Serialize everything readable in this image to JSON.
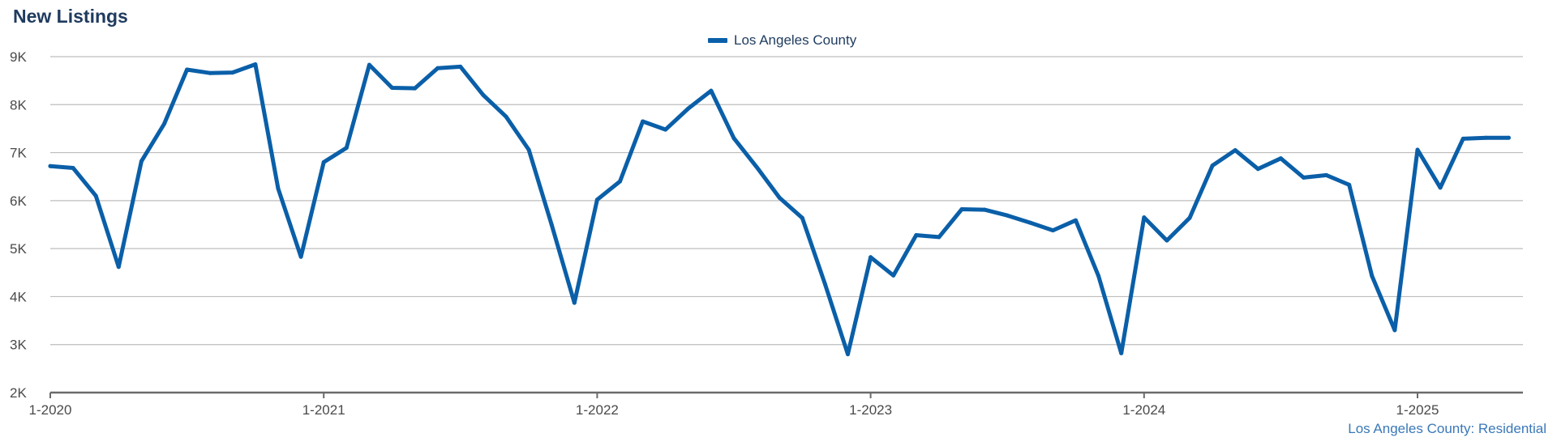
{
  "title": "New Listings",
  "footer": "Los Angeles County: Residential",
  "colors": {
    "line": "#0a5fa8",
    "grid": "#bdbdbd",
    "axis": "#6a6a6a",
    "title": "#1f3b5f"
  },
  "chart_data": {
    "type": "line",
    "title": "New Listings",
    "legend_position": "top-center",
    "grid": true,
    "ylim": [
      2000,
      9000
    ],
    "yticks": [
      2000,
      3000,
      4000,
      5000,
      6000,
      7000,
      8000,
      9000
    ],
    "ytick_labels": [
      "2K",
      "3K",
      "4K",
      "5K",
      "6K",
      "7K",
      "8K",
      "9K"
    ],
    "xtick_labels": [
      "1-2020",
      "1-2021",
      "1-2022",
      "1-2023",
      "1-2024",
      "1-2025"
    ],
    "x": [
      "1-2020",
      "2-2020",
      "3-2020",
      "4-2020",
      "5-2020",
      "6-2020",
      "7-2020",
      "8-2020",
      "9-2020",
      "10-2020",
      "11-2020",
      "12-2020",
      "1-2021",
      "2-2021",
      "3-2021",
      "4-2021",
      "5-2021",
      "6-2021",
      "7-2021",
      "8-2021",
      "9-2021",
      "10-2021",
      "11-2021",
      "12-2021",
      "1-2022",
      "2-2022",
      "3-2022",
      "4-2022",
      "5-2022",
      "6-2022",
      "7-2022",
      "8-2022",
      "9-2022",
      "10-2022",
      "11-2022",
      "12-2022",
      "1-2023",
      "2-2023",
      "3-2023",
      "4-2023",
      "5-2023",
      "6-2023",
      "7-2023",
      "8-2023",
      "9-2023",
      "10-2023",
      "11-2023",
      "12-2023",
      "1-2024",
      "2-2024",
      "3-2024",
      "4-2024",
      "5-2024",
      "6-2024",
      "7-2024",
      "8-2024",
      "9-2024",
      "10-2024",
      "11-2024",
      "12-2024",
      "1-2025",
      "2-2025",
      "3-2025",
      "4-2025",
      "5-2025"
    ],
    "series": [
      {
        "name": "Los Angeles County",
        "values": [
          6720,
          6680,
          6100,
          4620,
          6820,
          7600,
          8730,
          8660,
          8670,
          8840,
          6250,
          4830,
          6800,
          7100,
          8830,
          8350,
          8340,
          8760,
          8790,
          8200,
          7750,
          7060,
          5500,
          3870,
          6020,
          6400,
          7650,
          7480,
          7920,
          8290,
          7300,
          6700,
          6060,
          5640,
          4260,
          2800,
          4820,
          4440,
          5280,
          5240,
          5820,
          5810,
          5690,
          5540,
          5380,
          5590,
          4430,
          2820,
          5650,
          5170,
          5640,
          6730,
          7050,
          6660,
          6880,
          6480,
          6530,
          6330,
          4430,
          3300,
          7060,
          6270,
          7290,
          7310,
          7310
        ]
      }
    ]
  }
}
